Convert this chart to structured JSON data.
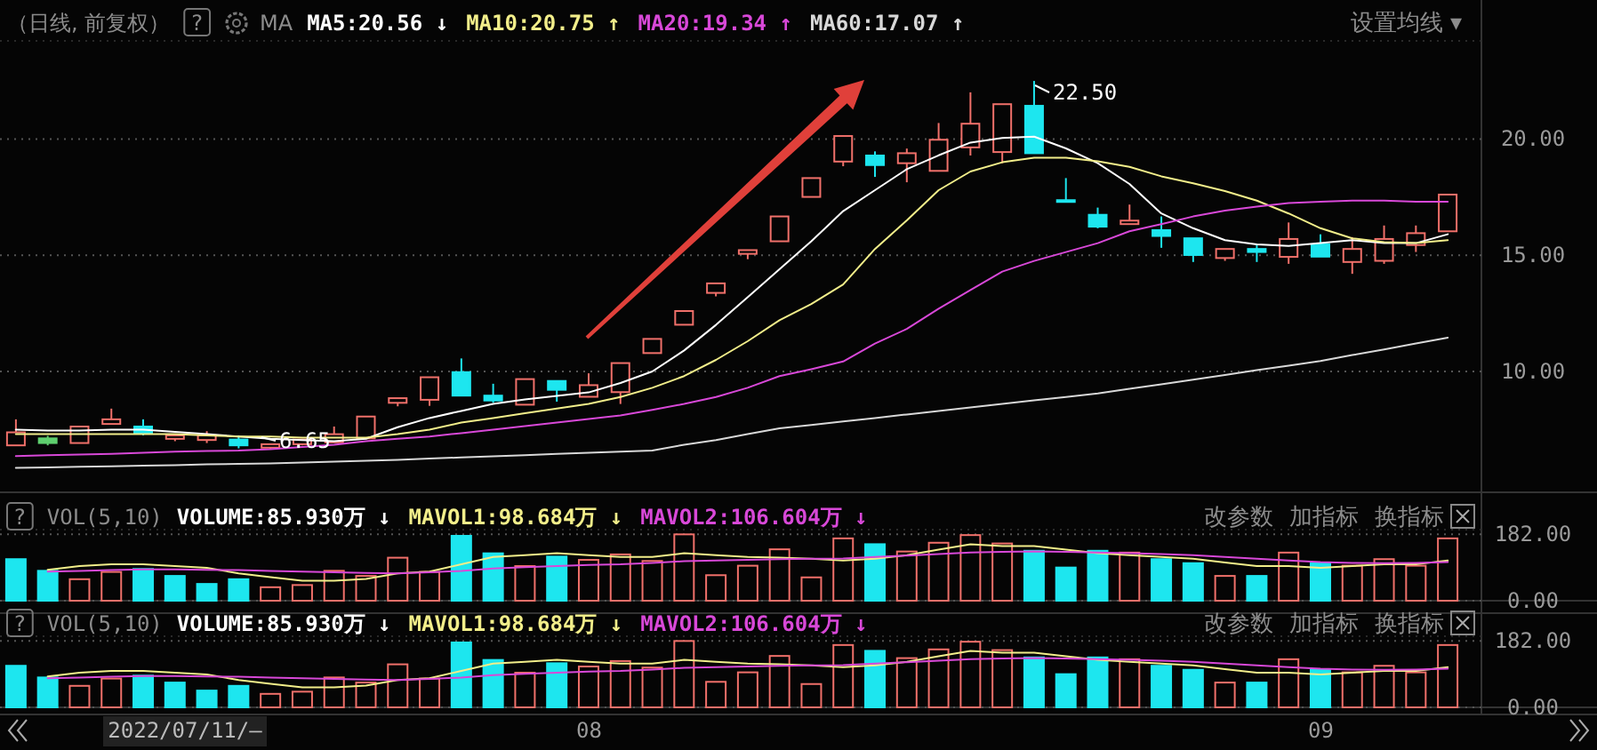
{
  "chart_data": [
    {
      "type": "candlestick",
      "subtitle": "（日线, 前复权）",
      "legend": "top left",
      "grid": "y",
      "tick_labels": "y",
      "categories": [
        null,
        null,
        null,
        null,
        null,
        null,
        null,
        null,
        null,
        null,
        null,
        null,
        null,
        null,
        null,
        null,
        null,
        null,
        null,
        null,
        null,
        null,
        null,
        null,
        null,
        null,
        null,
        null,
        null,
        null,
        null,
        null,
        null,
        null,
        null,
        null,
        null,
        null,
        null,
        null,
        null,
        null,
        null,
        null,
        null,
        null
      ],
      "ohlc": [
        [
          6.82,
          7.94,
          6.82,
          7.38
        ],
        [
          7.12,
          7.23,
          6.82,
          6.92
        ],
        [
          6.92,
          7.63,
          6.92,
          7.63
        ],
        [
          7.74,
          8.4,
          7.74,
          7.94
        ],
        [
          7.63,
          7.94,
          7.25,
          7.33
        ],
        [
          7.1,
          7.25,
          7.0,
          7.25
        ],
        [
          7.05,
          7.43,
          6.92,
          7.25
        ],
        [
          7.07,
          7.25,
          6.69,
          6.82
        ],
        [
          6.72,
          6.87,
          6.65,
          6.87
        ],
        [
          6.87,
          7.07,
          6.82,
          7.07
        ],
        [
          6.95,
          7.63,
          6.95,
          7.3
        ],
        [
          7.12,
          8.06,
          7.12,
          8.06
        ],
        [
          8.65,
          8.85,
          8.5,
          8.85
        ],
        [
          8.78,
          9.75,
          8.52,
          9.75
        ],
        [
          9.97,
          10.56,
          8.96,
          8.96
        ],
        [
          8.96,
          9.47,
          8.65,
          8.75
        ],
        [
          8.57,
          9.67,
          8.57,
          9.67
        ],
        [
          9.59,
          9.59,
          8.7,
          9.21
        ],
        [
          8.91,
          9.92,
          8.91,
          9.41
        ],
        [
          9.11,
          10.36,
          8.6,
          10.36
        ],
        [
          10.79,
          11.4,
          10.79,
          11.4
        ],
        [
          12.01,
          12.6,
          12.01,
          12.6
        ],
        [
          13.38,
          13.79,
          13.23,
          13.79
        ],
        [
          15.06,
          15.22,
          14.83,
          15.22
        ],
        [
          15.6,
          16.67,
          15.6,
          16.67
        ],
        [
          17.51,
          18.32,
          17.51,
          18.32
        ],
        [
          19.03,
          20.13,
          18.83,
          20.13
        ],
        [
          19.29,
          19.47,
          18.37,
          18.88
        ],
        [
          18.96,
          19.59,
          18.14,
          19.39
        ],
        [
          18.63,
          20.69,
          18.63,
          19.97
        ],
        [
          19.64,
          22.01,
          19.29,
          20.66
        ],
        [
          19.44,
          21.5,
          18.96,
          21.5
        ],
        [
          21.43,
          22.5,
          19.39,
          19.39
        ],
        [
          17.37,
          18.32,
          17.33,
          17.33
        ],
        [
          16.74,
          17.05,
          16.16,
          16.23
        ],
        [
          16.34,
          17.18,
          16.34,
          16.49
        ],
        [
          16.08,
          16.67,
          15.32,
          15.83
        ],
        [
          15.73,
          15.73,
          14.71,
          15.01
        ],
        [
          14.88,
          15.27,
          14.76,
          15.27
        ],
        [
          15.27,
          15.47,
          14.71,
          15.14
        ],
        [
          14.93,
          16.41,
          14.63,
          15.7
        ],
        [
          15.47,
          15.9,
          14.94,
          14.94
        ],
        [
          14.71,
          15.78,
          14.2,
          15.27
        ],
        [
          14.76,
          16.28,
          14.63,
          15.7
        ],
        [
          15.44,
          16.28,
          15.14,
          15.95
        ],
        [
          16.03,
          17.61,
          16.03,
          17.61
        ]
      ],
      "colors": [
        "#f0706a",
        "#5fcf6f",
        "#f0706a",
        "#f0706a",
        "#1de6ef",
        "#f0706a",
        "#f0706a",
        "#1de6ef",
        "#f0706a",
        "#f0706a",
        "#f0706a",
        "#f0706a",
        "#f0706a",
        "#f0706a",
        "#1de6ef",
        "#1de6ef",
        "#f0706a",
        "#1de6ef",
        "#f0706a",
        "#f0706a",
        "#f0706a",
        "#f0706a",
        "#f0706a",
        "#f0706a",
        "#f0706a",
        "#f0706a",
        "#f0706a",
        "#1de6ef",
        "#f0706a",
        "#f0706a",
        "#f0706a",
        "#f0706a",
        "#1de6ef",
        "#1de6ef",
        "#1de6ef",
        "#f0706a",
        "#1de6ef",
        "#1de6ef",
        "#f0706a",
        "#1de6ef",
        "#f0706a",
        "#1de6ef",
        "#f0706a",
        "#f0706a",
        "#f0706a",
        "#f0706a"
      ],
      "series": [
        {
          "name": "MA5:20.56 ↓",
          "type": "line",
          "color": "#ffffff",
          "values": [
            7.5,
            7.45,
            7.45,
            7.5,
            7.5,
            7.4,
            7.3,
            7.2,
            7.1,
            7.05,
            7.0,
            7.1,
            7.6,
            8.0,
            8.3,
            8.6,
            8.8,
            8.95,
            9.1,
            9.5,
            10.0,
            10.9,
            12.0,
            13.2,
            14.4,
            15.6,
            16.9,
            17.8,
            18.7,
            19.3,
            19.85,
            20.05,
            20.1,
            19.6,
            18.96,
            18.07,
            16.8,
            16.16,
            15.65,
            15.47,
            15.4,
            15.52,
            15.65,
            15.52,
            15.52,
            15.9
          ]
        },
        {
          "name": "MA10:20.75 ↑",
          "type": "line",
          "color": "#f2ee8a",
          "values": [
            7.3,
            7.3,
            7.3,
            7.3,
            7.3,
            7.3,
            7.25,
            7.2,
            7.2,
            7.15,
            7.15,
            7.15,
            7.3,
            7.5,
            7.8,
            8.0,
            8.2,
            8.4,
            8.6,
            8.9,
            9.3,
            9.8,
            10.5,
            11.3,
            12.2,
            12.9,
            13.74,
            15.27,
            16.5,
            17.8,
            18.6,
            19.0,
            19.2,
            19.2,
            19.05,
            18.8,
            18.4,
            18.1,
            17.76,
            17.35,
            16.8,
            16.16,
            15.73,
            15.57,
            15.52,
            15.65
          ]
        },
        {
          "name": "MA20:19.34 ↑",
          "type": "line",
          "color": "#d848d8",
          "values": [
            6.36,
            6.4,
            6.42,
            6.45,
            6.5,
            6.55,
            6.58,
            6.6,
            6.65,
            6.75,
            6.85,
            7.0,
            7.1,
            7.2,
            7.35,
            7.5,
            7.65,
            7.8,
            7.95,
            8.1,
            8.35,
            8.6,
            8.9,
            9.3,
            9.8,
            10.1,
            10.43,
            11.2,
            11.83,
            12.7,
            13.5,
            14.3,
            14.76,
            15.14,
            15.52,
            16.03,
            16.34,
            16.67,
            16.92,
            17.1,
            17.25,
            17.3,
            17.35,
            17.35,
            17.3,
            17.3
          ]
        },
        {
          "name": "MA60:17.07 ↑",
          "type": "line",
          "color": "#d8d8d8",
          "values": [
            5.85,
            5.87,
            5.9,
            5.92,
            5.95,
            5.97,
            6.0,
            6.02,
            6.05,
            6.08,
            6.12,
            6.15,
            6.2,
            6.25,
            6.3,
            6.35,
            6.4,
            6.45,
            6.5,
            6.55,
            6.6,
            6.85,
            7.05,
            7.3,
            7.55,
            7.7,
            7.85,
            8.0,
            8.15,
            8.3,
            8.45,
            8.6,
            8.75,
            8.9,
            9.05,
            9.25,
            9.45,
            9.65,
            9.85,
            10.05,
            10.25,
            10.45,
            10.7,
            10.95,
            11.2,
            11.45
          ]
        }
      ],
      "ylim": [
        4.8,
        24.3
      ],
      "yticks": [
        {
          "value": 10,
          "label": "10.00"
        },
        {
          "value": 15,
          "label": "15.00"
        },
        {
          "value": 20,
          "label": "20.00"
        }
      ],
      "annotations": [
        "?",
        "MA",
        "设置均线 ▾",
        "22.50",
        "6.65"
      ]
    },
    {
      "type": "bar",
      "title": "VOL(5,10)",
      "legend": "top left",
      "grid": "y",
      "tick_labels": "y",
      "categories": [
        null,
        null,
        null,
        null,
        null,
        null,
        null,
        null,
        null,
        null,
        null,
        null,
        null,
        null,
        null,
        null,
        null,
        null,
        null,
        null,
        null,
        null,
        null,
        null,
        null,
        null,
        null,
        null,
        null,
        null,
        null,
        null,
        null,
        null,
        null,
        null,
        null,
        null,
        null,
        null,
        null,
        null,
        null,
        null,
        null,
        null
      ],
      "series": [
        {
          "name": "VOLUME:85.930万 ↓",
          "color": "#ffffff",
          "colors": [
            "#1de6ef",
            "#1de6ef",
            "#f0706a",
            "#f0706a",
            "#1de6ef",
            "#1de6ef",
            "#1de6ef",
            "#1de6ef",
            "#f0706a",
            "#f0706a",
            "#f0706a",
            "#f0706a",
            "#f0706a",
            "#f0706a",
            "#1de6ef",
            "#1de6ef",
            "#f0706a",
            "#1de6ef",
            "#f0706a",
            "#f0706a",
            "#f0706a",
            "#f0706a",
            "#f0706a",
            "#f0706a",
            "#f0706a",
            "#f0706a",
            "#f0706a",
            "#1de6ef",
            "#f0706a",
            "#f0706a",
            "#f0706a",
            "#f0706a",
            "#1de6ef",
            "#1de6ef",
            "#1de6ef",
            "#f0706a",
            "#1de6ef",
            "#1de6ef",
            "#f0706a",
            "#1de6ef",
            "#f0706a",
            "#1de6ef",
            "#f0706a",
            "#f0706a",
            "#f0706a",
            "#f0706a"
          ],
          "values": [
            114,
            82,
            59,
            79,
            87,
            68,
            46,
            59,
            37,
            43,
            82,
            68,
            118,
            79,
            178,
            130,
            95,
            121,
            112,
            127,
            109,
            182,
            70,
            96,
            141,
            64,
            171,
            155,
            135,
            159,
            180,
            157,
            137,
            91,
            137,
            132,
            114,
            103,
            68,
            68,
            132,
            103,
            96,
            114,
            96,
            171
          ]
        },
        {
          "name": "MAVOL1:98.684万 ↓",
          "type": "line",
          "color": "#f2ee8a",
          "values": [
            null,
            85,
            95,
            100,
            100,
            95,
            90,
            75,
            65,
            55,
            55,
            60,
            75,
            80,
            100,
            120,
            125,
            130,
            125,
            120,
            120,
            130,
            125,
            120,
            118,
            115,
            110,
            115,
            125,
            140,
            155,
            150,
            150,
            140,
            130,
            125,
            120,
            115,
            105,
            95,
            95,
            90,
            95,
            100,
            100,
            110
          ]
        },
        {
          "name": "MAVOL2:106.604万 ↓",
          "type": "line",
          "color": "#d848d8",
          "values": [
            null,
            80,
            82,
            84,
            86,
            86,
            85,
            84,
            82,
            80,
            78,
            76,
            75,
            78,
            82,
            88,
            92,
            95,
            98,
            100,
            104,
            108,
            110,
            112,
            114,
            115,
            116,
            120,
            124,
            128,
            132,
            134,
            135,
            134,
            132,
            130,
            128,
            125,
            120,
            115,
            110,
            106,
            104,
            103,
            104,
            106
          ]
        }
      ],
      "ylim": [
        0,
        195
      ],
      "yticks": [
        {
          "value": 0,
          "label": "0.00"
        },
        {
          "value": 182,
          "label": "182.00"
        }
      ],
      "annotations": [
        "?",
        "改参数",
        "加指标",
        "换指标"
      ]
    },
    {
      "type": "bar",
      "title": "VOL(5,10)",
      "legend": "top left",
      "grid": "y",
      "categories": [
        null,
        null,
        null,
        null,
        null,
        null,
        null,
        null,
        null,
        null,
        null,
        null,
        null,
        null,
        null,
        null,
        null,
        null,
        "08",
        null,
        null,
        null,
        null,
        null,
        null,
        null,
        null,
        null,
        null,
        null,
        null,
        null,
        null,
        null,
        null,
        null,
        null,
        null,
        null,
        null,
        null,
        "09",
        null,
        null,
        null,
        null
      ],
      "series": [
        {
          "name": "VOLUME:85.930万 ↓",
          "color": "#ffffff",
          "colors": [
            "#1de6ef",
            "#1de6ef",
            "#f0706a",
            "#f0706a",
            "#1de6ef",
            "#1de6ef",
            "#1de6ef",
            "#1de6ef",
            "#f0706a",
            "#f0706a",
            "#f0706a",
            "#f0706a",
            "#f0706a",
            "#f0706a",
            "#1de6ef",
            "#1de6ef",
            "#f0706a",
            "#1de6ef",
            "#f0706a",
            "#f0706a",
            "#f0706a",
            "#f0706a",
            "#f0706a",
            "#f0706a",
            "#f0706a",
            "#f0706a",
            "#f0706a",
            "#1de6ef",
            "#f0706a",
            "#f0706a",
            "#f0706a",
            "#f0706a",
            "#1de6ef",
            "#1de6ef",
            "#1de6ef",
            "#f0706a",
            "#1de6ef",
            "#1de6ef",
            "#f0706a",
            "#1de6ef",
            "#f0706a",
            "#1de6ef",
            "#f0706a",
            "#f0706a",
            "#f0706a",
            "#f0706a"
          ],
          "values": [
            114,
            82,
            59,
            79,
            87,
            68,
            46,
            59,
            37,
            43,
            82,
            68,
            118,
            79,
            178,
            130,
            95,
            121,
            112,
            127,
            109,
            182,
            70,
            96,
            141,
            64,
            171,
            155,
            135,
            159,
            180,
            157,
            137,
            91,
            137,
            132,
            114,
            103,
            68,
            68,
            132,
            103,
            96,
            114,
            96,
            171
          ]
        },
        {
          "name": "MAVOL1:98.684万 ↓",
          "type": "line",
          "color": "#f2ee8a",
          "values": [
            null,
            85,
            95,
            100,
            100,
            95,
            90,
            75,
            65,
            55,
            55,
            60,
            75,
            80,
            100,
            120,
            125,
            130,
            125,
            120,
            120,
            130,
            125,
            120,
            118,
            115,
            110,
            115,
            125,
            140,
            155,
            150,
            150,
            140,
            130,
            125,
            120,
            115,
            105,
            95,
            95,
            90,
            95,
            100,
            100,
            110
          ]
        },
        {
          "name": "MAVOL2:106.604万 ↓",
          "type": "line",
          "color": "#d848d8",
          "values": [
            null,
            80,
            82,
            84,
            86,
            86,
            85,
            84,
            82,
            80,
            78,
            76,
            75,
            78,
            82,
            88,
            92,
            95,
            98,
            100,
            104,
            108,
            110,
            112,
            114,
            115,
            116,
            120,
            124,
            128,
            132,
            134,
            135,
            134,
            132,
            130,
            128,
            125,
            120,
            115,
            110,
            106,
            104,
            103,
            104,
            106
          ]
        }
      ],
      "ylim": [
        0,
        195
      ],
      "yticks": [
        {
          "value": 0,
          "label": "0.00"
        },
        {
          "value": 182,
          "label": "182.00"
        }
      ],
      "annotations": [
        "?",
        "改参数",
        "加指标",
        "换指标",
        "2022/07/11/—"
      ]
    }
  ]
}
